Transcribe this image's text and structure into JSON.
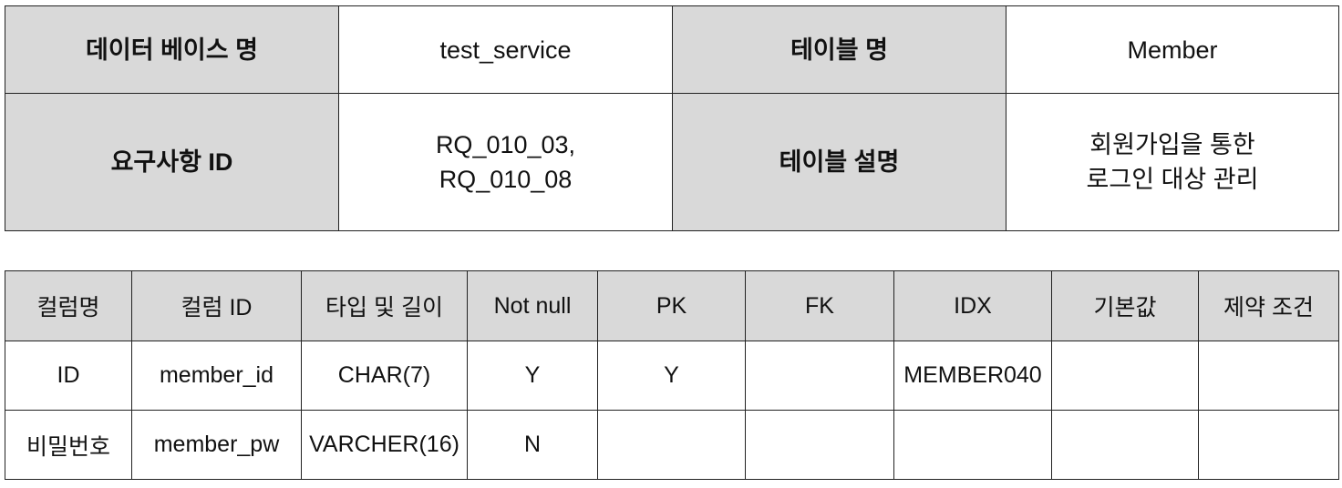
{
  "meta": {
    "db_name_label": "데이터 베이스 명",
    "db_name_value": "test_service",
    "table_name_label": "테이블 명",
    "table_name_value": "Member",
    "requirement_id_label": "요구사항 ID",
    "requirement_id_lines": [
      "RQ_010_03,",
      "RQ_010_08"
    ],
    "table_desc_label": "테이블 설명",
    "table_desc_lines": [
      "회원가입을 통한",
      "로그인 대상 관리"
    ]
  },
  "columns_table": {
    "headers": [
      "컬럼명",
      "컬럼 ID",
      "타입 및 길이",
      "Not null",
      "PK",
      "FK",
      "IDX",
      "기본값",
      "제약 조건"
    ],
    "rows": [
      [
        "ID",
        "member_id",
        "CHAR(7)",
        "Y",
        "Y",
        "",
        "MEMBER040",
        "",
        ""
      ],
      [
        "비밀번호",
        "member_pw",
        "VARCHER(16)",
        "N",
        "",
        "",
        "",
        "",
        ""
      ]
    ]
  }
}
